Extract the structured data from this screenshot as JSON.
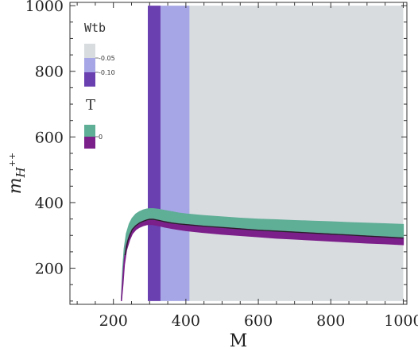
{
  "chart_data": {
    "type": "area",
    "title": "",
    "xlabel": "M",
    "ylabel_main": "m",
    "ylabel_sub": "H",
    "ylabel_sup": "++",
    "xlim": [
      80,
      1010
    ],
    "ylim": [
      90,
      1010
    ],
    "xticks": [
      200,
      400,
      600,
      800,
      1000
    ],
    "yticks": [
      200,
      400,
      600,
      800,
      1000
    ],
    "xtick_labels": [
      "200",
      "400",
      "600",
      "800",
      "1000"
    ],
    "ytick_labels": [
      "200",
      "400",
      "600",
      "800",
      "1000"
    ],
    "bands": [
      {
        "name": "Wtb -0.10",
        "x_from": 295,
        "x_to": 330,
        "y_from": 100,
        "y_to": 1000,
        "color": "#6a3fb0"
      },
      {
        "name": "Wtb -0.05",
        "x_from": 330,
        "x_to": 410,
        "y_from": 100,
        "y_to": 1000,
        "color": "#a6a6e6"
      },
      {
        "name": "Wtb background",
        "x_from": 410,
        "x_to": 1000,
        "y_from": 100,
        "y_to": 1000,
        "color": "#d8dcdf"
      }
    ],
    "series": [
      {
        "name": "T 0 (upper)",
        "color": "#5fae96",
        "x": [
          222,
          226,
          230,
          236,
          244,
          252,
          262,
          272,
          282,
          292,
          300,
          310,
          325,
          340,
          360,
          380,
          400,
          450,
          500,
          550,
          600,
          650,
          700,
          750,
          800,
          850,
          900,
          950,
          1000
        ],
        "y_low": [
          100,
          170,
          225,
          270,
          300,
          318,
          330,
          338,
          343,
          347,
          349,
          349,
          346,
          342,
          338,
          335,
          333,
          328,
          324,
          320,
          316,
          313,
          310,
          307,
          304,
          301,
          298,
          295,
          292
        ],
        "y_high": [
          100,
          200,
          260,
          305,
          335,
          352,
          365,
          372,
          377,
          380,
          381,
          381,
          379,
          376,
          372,
          368,
          365,
          360,
          356,
          352,
          349,
          347,
          345,
          343,
          341,
          339,
          337,
          335,
          333
        ]
      },
      {
        "name": "T 0 (lower)",
        "color": "#7b1f8a",
        "x": [
          222,
          226,
          230,
          236,
          244,
          252,
          262,
          272,
          282,
          292,
          300,
          310,
          325,
          340,
          360,
          380,
          400,
          450,
          500,
          550,
          600,
          650,
          700,
          750,
          800,
          850,
          900,
          950,
          1000
        ],
        "y_low": [
          100,
          150,
          210,
          255,
          285,
          305,
          318,
          325,
          330,
          333,
          334,
          333,
          330,
          326,
          322,
          318,
          315,
          309,
          304,
          300,
          296,
          292,
          289,
          286,
          283,
          280,
          277,
          275,
          272
        ],
        "y_high": [
          100,
          170,
          225,
          270,
          300,
          318,
          330,
          338,
          343,
          347,
          349,
          349,
          346,
          342,
          338,
          335,
          333,
          328,
          324,
          320,
          316,
          313,
          310,
          307,
          304,
          301,
          298,
          295,
          292
        ]
      }
    ],
    "boundary_line": {
      "color": "#222222",
      "x": [
        232,
        240,
        252,
        262,
        272,
        282,
        292,
        300,
        310,
        325,
        340,
        360,
        380,
        400,
        450,
        500,
        550,
        600,
        650,
        700,
        750,
        800,
        850,
        900,
        950,
        1000
      ],
      "y": [
        240,
        285,
        318,
        330,
        338,
        343,
        347,
        349,
        349,
        346,
        342,
        338,
        335,
        333,
        328,
        324,
        320,
        316,
        313,
        310,
        307,
        304,
        301,
        298,
        295,
        292
      ]
    },
    "legends": [
      {
        "title": "Wtb",
        "swatches": [
          "#d8dcdf",
          "#a6a6e6",
          "#6a3fb0"
        ],
        "tick_labels": [
          "-0.05",
          "-0.10"
        ]
      },
      {
        "title": "T",
        "swatches": [
          "#5fae96",
          "#7b1f8a"
        ],
        "tick_labels": [
          "0"
        ]
      }
    ],
    "legend_placement": "top-left",
    "grid": false
  }
}
